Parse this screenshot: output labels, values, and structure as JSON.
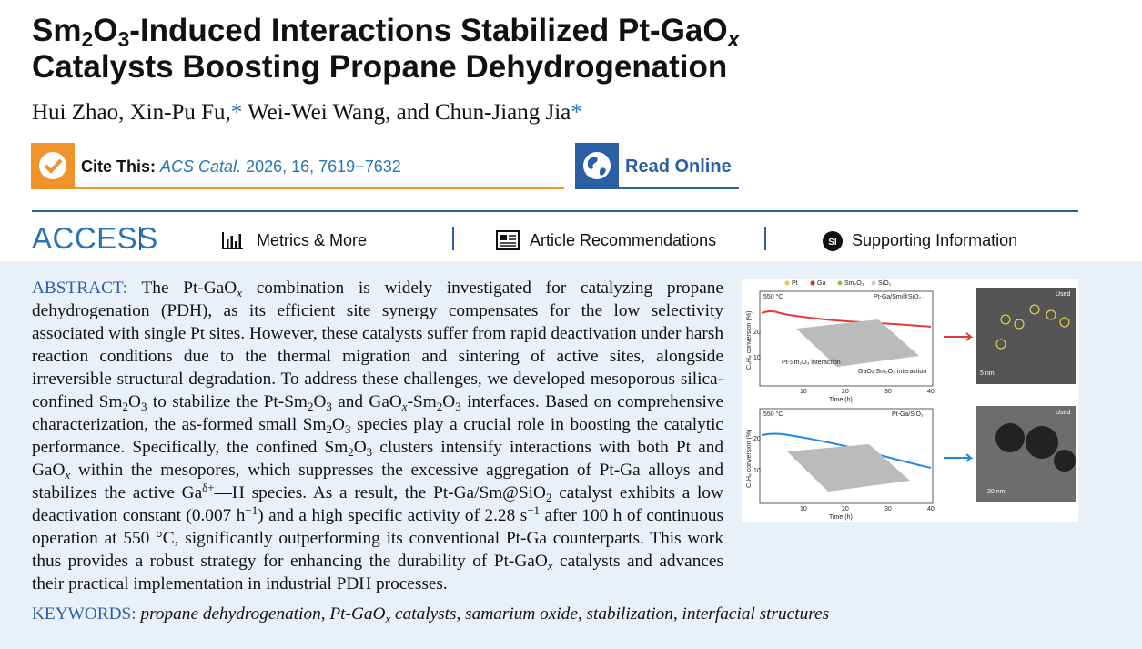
{
  "header": {
    "title": [
      "Sm",
      "2",
      "O",
      "3",
      "-Induced Interactions Stabilized Pt-GaO",
      "x",
      " Catalysts Boosting Propane Dehydrogenation"
    ],
    "authors": [
      "Hui Zhao, Xin-Pu Fu,",
      "*",
      " Wei-Wei Wang, and Chun-Jiang Jia",
      "*"
    ],
    "cite_label": "Cite This:",
    "cite_journal": "ACS Catal.",
    "cite_rest": " 2026, 16, 7619−7632",
    "read_online": "Read Online"
  },
  "nav": {
    "access": "ACCESS",
    "items": [
      "Metrics & More",
      "Article Recommendations",
      "Supporting Information"
    ],
    "si_icon": "SI"
  },
  "abstract": {
    "label": "ABSTRACT:",
    "text": [
      "The Pt-GaO",
      "x",
      " combination is widely investigated for catalyzing propane dehydrogenation (PDH), as its efficient site synergy compensates for the low selectivity associated with single Pt sites. However, these catalysts suffer from rapid deactivation under harsh reaction conditions due to the thermal migration and sintering of active sites, alongside irreversible structural degradation. To address these challenges, we developed mesoporous silica-confined Sm",
      "2",
      "O",
      "3",
      " to stabilize the Pt-Sm",
      "2",
      "O",
      "3",
      " and GaO",
      "x",
      "-Sm",
      "2",
      "O",
      "3",
      " interfaces. Based on comprehensive characterization, the as-formed small Sm",
      "2",
      "O",
      "3",
      " species play a crucial role in boosting the catalytic performance. Specifically, the confined Sm",
      "2",
      "O",
      "3",
      " clusters intensify interactions with both Pt and GaO",
      "x",
      " within the mesopores, which suppresses the excessive aggregation of Pt-Ga alloys and stabilizes the active Ga",
      "δ+",
      "—H species. As a result, the Pt-Ga/Sm@SiO",
      "2",
      " catalyst exhibits a low deactivation constant (0.007 h",
      "−1",
      ") and a high specific activity of 2.28 s",
      "−1",
      " after 100 h of continuous operation at 550 °C, significantly outperforming its conventional Pt-Ga counterparts. This work thus provides a robust strategy for enhancing the durability of Pt-GaO",
      "x",
      " catalysts and advances their practical implementation in industrial PDH processes."
    ]
  },
  "keywords": {
    "label": "KEYWORDS:",
    "text": [
      "propane dehydrogenation, Pt-GaO",
      "x",
      " catalysts, samarium oxide, stabilization, interfacial structures"
    ]
  },
  "figure": {
    "legend": [
      "Pt",
      "Ga",
      "Sm₂O₃",
      "SiO₂"
    ],
    "panels": [
      {
        "temp": "550 °C",
        "sample": "Pt-Ga/Sm@SiO₂",
        "used": "Used",
        "scale": "5 nm",
        "xlabel": "Time (h)",
        "ylabel": "C₃H₆ conversion (%)",
        "xticks": [
          "10",
          "20",
          "30",
          "40"
        ],
        "yticks": [
          "20",
          "10"
        ],
        "notes": [
          "Pt-Sm₂O₃ interaction",
          "GaOₓ-Sm₂O₃ interaction"
        ]
      },
      {
        "temp": "550 °C",
        "sample": "Pt-Ga/SiO₂",
        "used": "Used",
        "scale": "20 nm",
        "xlabel": "Time (h)",
        "ylabel": "C₃H₆ conversion (%)",
        "xticks": [
          "10",
          "20",
          "30",
          "40"
        ],
        "yticks": [
          "20",
          "10"
        ]
      }
    ]
  }
}
